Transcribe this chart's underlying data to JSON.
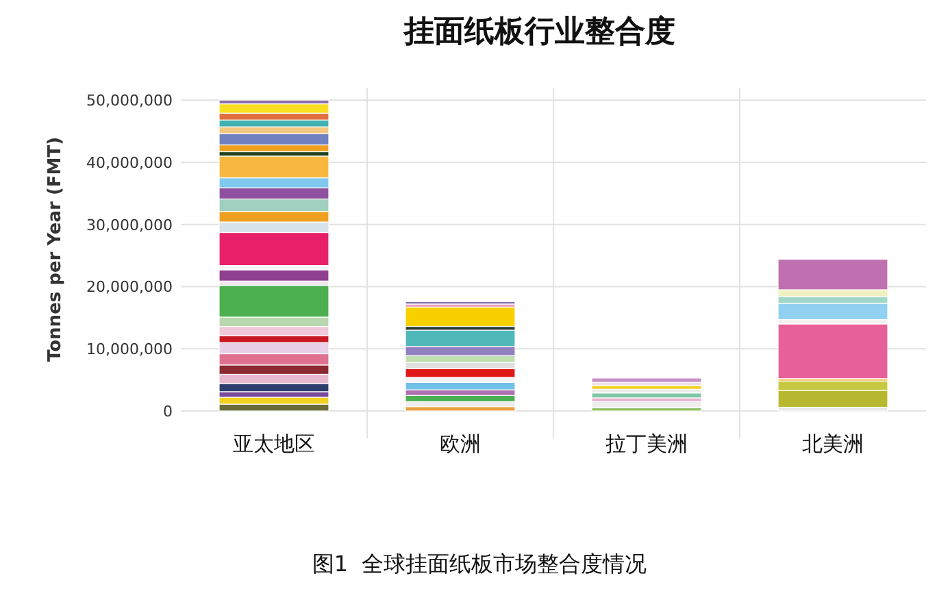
{
  "chart_data": {
    "type": "bar",
    "title": "挂面纸板行业整合度",
    "ylabel": "Tonnes per Year (FMT)",
    "annotations": [
      "图1  全球挂面纸板市场整合度情况"
    ],
    "categories": [
      "亚太地区",
      "欧洲",
      "拉丁美洲",
      "北美洲"
    ],
    "stacked": true,
    "grid": true,
    "ylim": [
      0,
      52000000
    ],
    "yticks": [
      {
        "value": 0,
        "label": "0"
      },
      {
        "value": 10000000,
        "label": "10,000,000"
      },
      {
        "value": 20000000,
        "label": "20,000,000"
      },
      {
        "value": 30000000,
        "label": "30,000,000"
      },
      {
        "value": 40000000,
        "label": "40,000,000"
      },
      {
        "value": 50000000,
        "label": "50,000,000"
      }
    ],
    "series": [
      {
        "colors": [
          "#6b6b3a",
          "#e8a040",
          "#8cc060",
          "#e8e8e8"
        ],
        "values": [
          1100000,
          700000,
          500000,
          600000
        ]
      },
      {
        "colors": [
          "#f2d020",
          "#eeeeee",
          "#eeeeee",
          "#b8b830"
        ],
        "values": [
          1100000,
          800000,
          1000000,
          2700000
        ]
      },
      {
        "colors": [
          "#7a4a9a",
          "#4caf50",
          "#e8b0d0",
          "#c8c840"
        ],
        "values": [
          900000,
          1000000,
          600000,
          1500000
        ]
      },
      {
        "colors": [
          "#2e3f6e",
          "#b070b0",
          "#80c8a8",
          "#f4c060"
        ],
        "values": [
          1300000,
          900000,
          800000,
          400000
        ]
      },
      {
        "colors": [
          "#e8b8d0",
          "#70c0e8",
          "#eeeeee",
          "#e8609a"
        ],
        "values": [
          1500000,
          1200000,
          600000,
          8800000
        ]
      },
      {
        "colors": [
          "#8a2a30",
          "#f4f4f4",
          "#f2d020",
          "#f4f0f0"
        ],
        "values": [
          1500000,
          800000,
          600000,
          700000
        ]
      },
      {
        "colors": [
          "#e07090",
          "#e01818",
          "#f0e0e8",
          "#90d0f0"
        ],
        "values": [
          1800000,
          1400000,
          500000,
          2600000
        ]
      },
      {
        "colors": [
          "#e8d0e8",
          "#e0e0e0",
          "#c890c8",
          "#a0d8c8"
        ],
        "values": [
          1800000,
          1000000,
          700000,
          1100000
        ]
      },
      {
        "colors": [
          "#c81820",
          "#c0e0b0",
          null,
          "#f0f0c0"
        ],
        "values": [
          1100000,
          1100000,
          null,
          1100000
        ]
      },
      {
        "colors": [
          "#f0c8d8",
          "#9080c0",
          null,
          "#c070b0"
        ],
        "values": [
          1500000,
          1500000,
          null,
          4900000
        ]
      },
      {
        "colors": [
          "#b8d8b0",
          "#50b8b8",
          null,
          null
        ],
        "values": [
          1500000,
          2600000,
          null,
          null
        ]
      },
      {
        "colors": [
          "#4caf50",
          "#2a3a30",
          null,
          null
        ],
        "values": [
          5100000,
          600000,
          null,
          null
        ]
      },
      {
        "colors": [
          "#f0e8ec",
          "#f8d000",
          null,
          null
        ],
        "values": [
          700000,
          3100000,
          null,
          null
        ]
      },
      {
        "colors": [
          "#904090",
          "#e8a0c0",
          null,
          null
        ],
        "values": [
          1800000,
          500000,
          null,
          null
        ]
      },
      {
        "colors": [
          "#f4f4f4",
          "#8070b0",
          null,
          null
        ],
        "values": [
          700000,
          400000,
          null,
          null
        ]
      },
      {
        "colors": [
          "#e8206a",
          null,
          null,
          null
        ],
        "values": [
          5300000,
          null,
          null,
          null
        ]
      },
      {
        "colors": [
          "#d8e4ec",
          null,
          null,
          null
        ],
        "values": [
          1700000,
          null,
          null,
          null
        ]
      },
      {
        "colors": [
          "#f0a020",
          null,
          null,
          null
        ],
        "values": [
          1700000,
          null,
          null,
          null
        ]
      },
      {
        "colors": [
          "#a0d0c0",
          null,
          null,
          null
        ],
        "values": [
          2000000,
          null,
          null,
          null
        ]
      },
      {
        "colors": [
          "#9050a0",
          null,
          null,
          null
        ],
        "values": [
          1800000,
          null,
          null,
          null
        ]
      },
      {
        "colors": [
          "#80c8f0",
          null,
          null,
          null
        ],
        "values": [
          1600000,
          null,
          null,
          null
        ]
      },
      {
        "colors": [
          "#f8b840",
          null,
          null,
          null
        ],
        "values": [
          3500000,
          null,
          null,
          null
        ]
      },
      {
        "colors": [
          "#204020",
          null,
          null,
          null
        ],
        "values": [
          700000,
          null,
          null,
          null
        ]
      },
      {
        "colors": [
          "#f0a020",
          null,
          null,
          null
        ],
        "values": [
          1100000,
          null,
          null,
          null
        ]
      },
      {
        "colors": [
          "#7080c0",
          null,
          null,
          null
        ],
        "values": [
          1800000,
          null,
          null,
          null
        ]
      },
      {
        "colors": [
          "#f4c880",
          null,
          null,
          null
        ],
        "values": [
          1100000,
          null,
          null,
          null
        ]
      },
      {
        "colors": [
          "#40b0b0",
          null,
          null,
          null
        ],
        "values": [
          1100000,
          null,
          null,
          null
        ]
      },
      {
        "colors": [
          "#e07040",
          null,
          null,
          null
        ],
        "values": [
          1100000,
          null,
          null,
          null
        ]
      },
      {
        "colors": [
          "#f8e020",
          null,
          null,
          null
        ],
        "values": [
          1500000,
          null,
          null,
          null
        ]
      },
      {
        "colors": [
          "#9070a8",
          null,
          null,
          null
        ],
        "values": [
          600000,
          null,
          null,
          null
        ]
      }
    ]
  }
}
